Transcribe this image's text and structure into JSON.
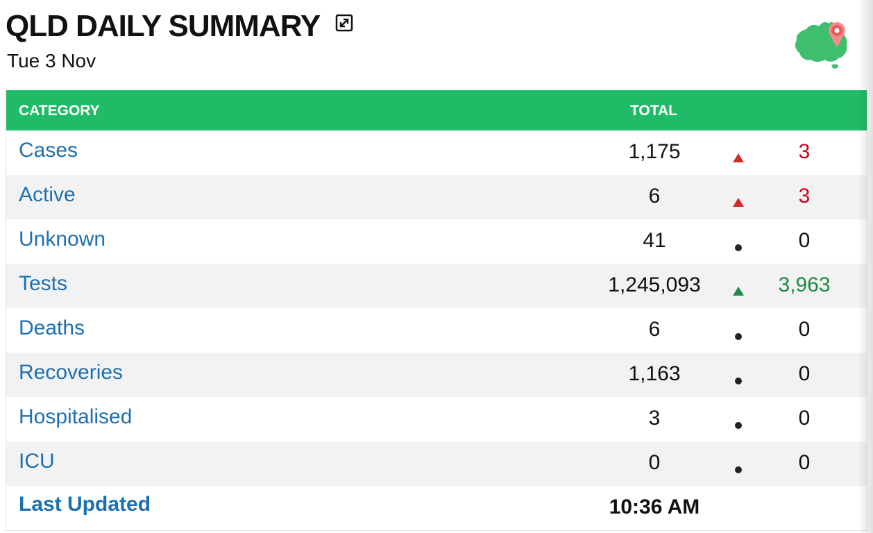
{
  "header": {
    "title": "QLD DAILY SUMMARY",
    "date": "Tue 3 Nov"
  },
  "icons": {
    "expand": "expand-icon",
    "map": "australia-map-pin-icon"
  },
  "table": {
    "headers": {
      "category": "CATEGORY",
      "total": "TOTAL"
    },
    "rows": [
      {
        "category": "Cases",
        "total": "1,175",
        "trend": "up",
        "change": "3",
        "change_color": "#d0021b"
      },
      {
        "category": "Active",
        "total": "6",
        "trend": "up",
        "change": "3",
        "change_color": "#d0021b"
      },
      {
        "category": "Unknown",
        "total": "41",
        "trend": "none",
        "change": "0",
        "change_color": "#111111"
      },
      {
        "category": "Tests",
        "total": "1,245,093",
        "trend": "up-green",
        "change": "3,963",
        "change_color": "#1f8a47"
      },
      {
        "category": "Deaths",
        "total": "6",
        "trend": "none",
        "change": "0",
        "change_color": "#111111"
      },
      {
        "category": "Recoveries",
        "total": "1,163",
        "trend": "none",
        "change": "0",
        "change_color": "#111111"
      },
      {
        "category": "Hospitalised",
        "total": "3",
        "trend": "none",
        "change": "0",
        "change_color": "#111111"
      },
      {
        "category": "ICU",
        "total": "0",
        "trend": "none",
        "change": "0",
        "change_color": "#111111"
      }
    ],
    "last_updated": {
      "label": "Last Updated",
      "value": "10:36 AM"
    }
  },
  "colors": {
    "header_green": "#21bb67",
    "link_blue": "#1d6fb0",
    "increase_red": "#d0021b",
    "increase_green": "#1f8a47"
  }
}
